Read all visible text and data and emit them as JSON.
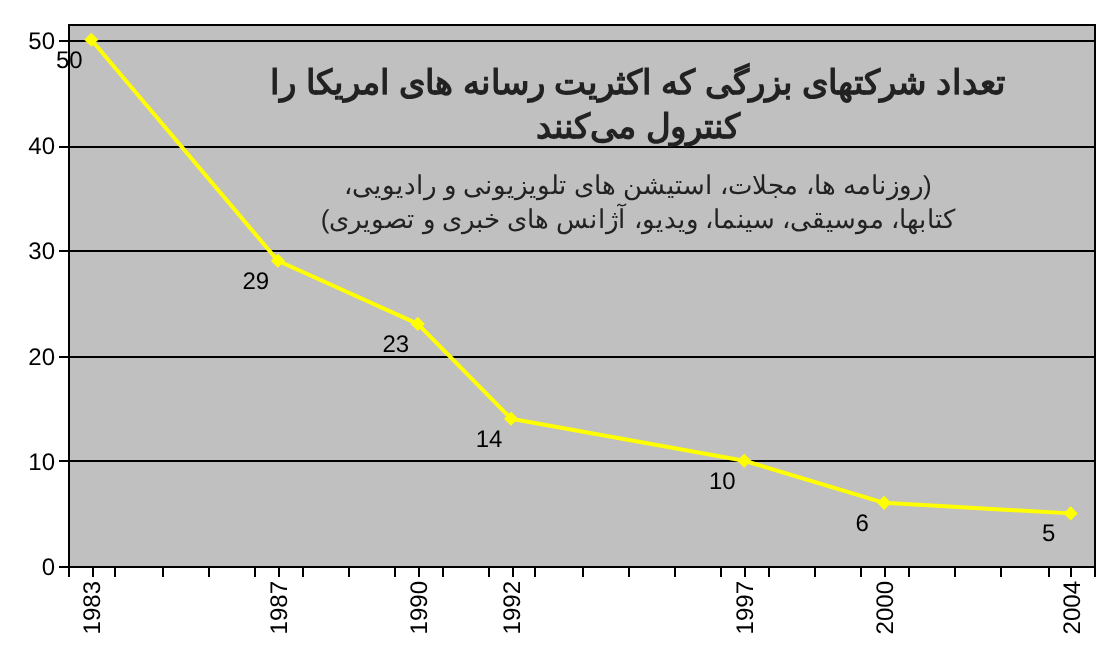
{
  "chart_data": {
    "type": "line",
    "title": "تعداد شرکتهای بزرگی که اکثریت رسانه های امریکا را\nکنترول می‌کنند",
    "subtitle": "(روزنامه ها، مجلات، استیشن های تلویزیونی و رادیویی،\nکتابها، موسیقی، سینما، ویدیو، آژانس های خبری و تصویری)",
    "x": [
      1983,
      1987,
      1990,
      1992,
      1997,
      2000,
      2004
    ],
    "series": [
      {
        "color": "#ffff00",
        "values": [
          50,
          29,
          23,
          14,
          10,
          6,
          5
        ]
      }
    ],
    "xlim": [
      1982.5,
      2004.5
    ],
    "xticks": [
      1983,
      1987,
      1990,
      1992,
      1997,
      2000,
      2004,
      {
        "value": 1982.5,
        "label": null
      },
      {
        "value": 1983.5,
        "label": null
      },
      {
        "value": 1984.5,
        "label": null
      },
      {
        "value": 1985.5,
        "label": null
      },
      {
        "value": 1986.5,
        "label": null
      },
      {
        "value": 1987.5,
        "label": null
      },
      {
        "value": 1988.5,
        "label": null
      },
      {
        "value": 1989.5,
        "label": null
      },
      {
        "value": 1990.5,
        "label": null
      },
      {
        "value": 1991.5,
        "label": null
      },
      {
        "value": 1992.5,
        "label": null
      },
      {
        "value": 1993.5,
        "label": null
      },
      {
        "value": 1994.5,
        "label": null
      },
      {
        "value": 1995.5,
        "label": null
      },
      {
        "value": 1996.5,
        "label": null
      },
      {
        "value": 1997.5,
        "label": null
      },
      {
        "value": 1998.5,
        "label": null
      },
      {
        "value": 1999.5,
        "label": null
      },
      {
        "value": 2000.5,
        "label": null
      },
      {
        "value": 2001.5,
        "label": null
      },
      {
        "value": 2002.5,
        "label": null
      },
      {
        "value": 2003.5,
        "label": null
      },
      {
        "value": 2004.5,
        "label": null
      }
    ],
    "ylim": [
      0,
      51.5
    ],
    "yticks": [
      0,
      10,
      20,
      30,
      40,
      50
    ],
    "grid": "y",
    "marker": "diamond",
    "line_style": "solid",
    "data_labels": true
  }
}
